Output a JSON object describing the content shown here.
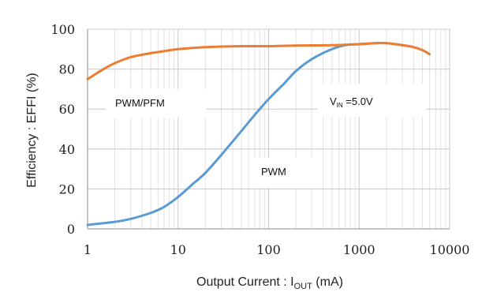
{
  "chart_data": {
    "type": "line",
    "xscale": "log",
    "xlim": [
      1,
      10000
    ],
    "ylim": [
      0,
      100
    ],
    "xticks": [
      1,
      10,
      100,
      1000,
      10000
    ],
    "xtick_labels": [
      "1",
      "10",
      "100",
      "1000",
      "10000"
    ],
    "yticks": [
      0,
      20,
      40,
      60,
      80,
      100
    ],
    "ytick_labels": [
      "0",
      "20",
      "40",
      "60",
      "80",
      "100"
    ],
    "xlabel_main": "Output Current : I",
    "xlabel_sub": "OUT",
    "xlabel_unit": " (mA)",
    "ylabel": "Efficiency : EFFI (%)",
    "grid": true,
    "legend": "none",
    "series": [
      {
        "name": "PWM/PFM",
        "color": "#ed7d31",
        "x": [
          1,
          1.5,
          2,
          3,
          5,
          7,
          10,
          20,
          50,
          100,
          200,
          500,
          1000,
          1500,
          2000,
          2500,
          3000,
          4000,
          5000,
          6000
        ],
        "y": [
          75,
          80,
          83,
          86,
          88,
          89,
          90,
          91,
          91.5,
          91.5,
          91.8,
          92,
          92.5,
          93,
          93,
          92.5,
          92,
          91,
          89.5,
          87.5
        ]
      },
      {
        "name": "PWM",
        "color": "#5b9bd5",
        "x": [
          1,
          2,
          3,
          5,
          7,
          10,
          15,
          20,
          30,
          50,
          70,
          100,
          150,
          200,
          300,
          500,
          700,
          1000,
          1500,
          2000,
          2500,
          3000,
          4000,
          5000,
          6000
        ],
        "y": [
          2,
          3.5,
          5,
          8,
          11,
          16,
          23,
          28,
          37,
          49,
          57,
          65,
          73,
          79,
          85,
          90,
          92,
          92.5,
          93,
          93,
          92.5,
          92,
          91,
          89.5,
          87.5
        ]
      }
    ],
    "annotations": [
      {
        "text": "PWM/PFM"
      },
      {
        "text_main": "V",
        "text_sub": "IN",
        "text_rest": " =5.0V"
      },
      {
        "text": "PWM"
      }
    ]
  }
}
